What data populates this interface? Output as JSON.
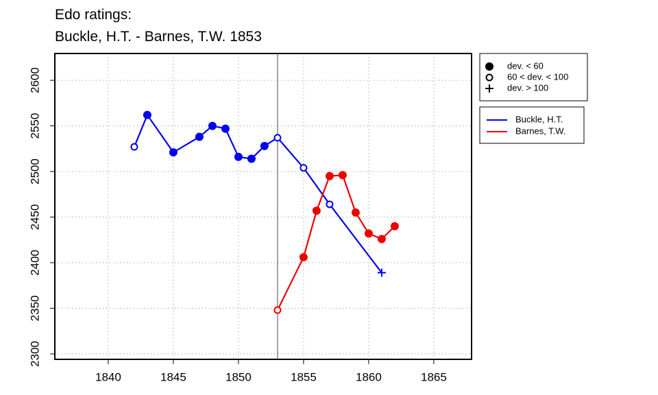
{
  "chart_data": {
    "type": "line",
    "title": [
      "Edo ratings:",
      "Buckle, H.T. - Barnes, T.W. 1853"
    ],
    "xlim": [
      1835.9,
      1867.9
    ],
    "xticks": [
      1840,
      1845,
      1850,
      1855,
      1860,
      1865
    ],
    "ylim": [
      2294,
      2629.4
    ],
    "yticks": [
      2300,
      2350,
      2400,
      2450,
      2500,
      2550,
      2600
    ],
    "grid": true,
    "vline": 1853,
    "marker_legend": [
      {
        "marker": "filled",
        "label": "dev. < 60"
      },
      {
        "marker": "open",
        "label": "60 < dev. < 100"
      },
      {
        "marker": "plus",
        "label": "dev. > 100"
      }
    ],
    "series": [
      {
        "name": "Buckle, H.T.",
        "color": "#0000ee",
        "x": [
          1842,
          1843,
          1845,
          1847,
          1848,
          1849,
          1850,
          1851,
          1852,
          1853,
          1855,
          1857,
          1861
        ],
        "values": [
          2527,
          2562,
          2521,
          2538,
          2550,
          2547,
          2516,
          2514,
          2528,
          2537,
          2504,
          2464,
          2389
        ],
        "markers": [
          "open",
          "filled",
          "filled",
          "filled",
          "filled",
          "filled",
          "filled",
          "filled",
          "filled",
          "open",
          "open",
          "open",
          "plus"
        ]
      },
      {
        "name": "Barnes, T.W.",
        "color": "#ee0000",
        "x": [
          1853,
          1855,
          1856,
          1857,
          1858,
          1859,
          1860,
          1861,
          1862
        ],
        "values": [
          2348,
          2406,
          2457,
          2495,
          2496,
          2455,
          2432,
          2426,
          2440
        ],
        "markers": [
          "open",
          "filled",
          "filled",
          "filled",
          "filled",
          "filled",
          "filled",
          "filled",
          "filled"
        ]
      }
    ]
  }
}
